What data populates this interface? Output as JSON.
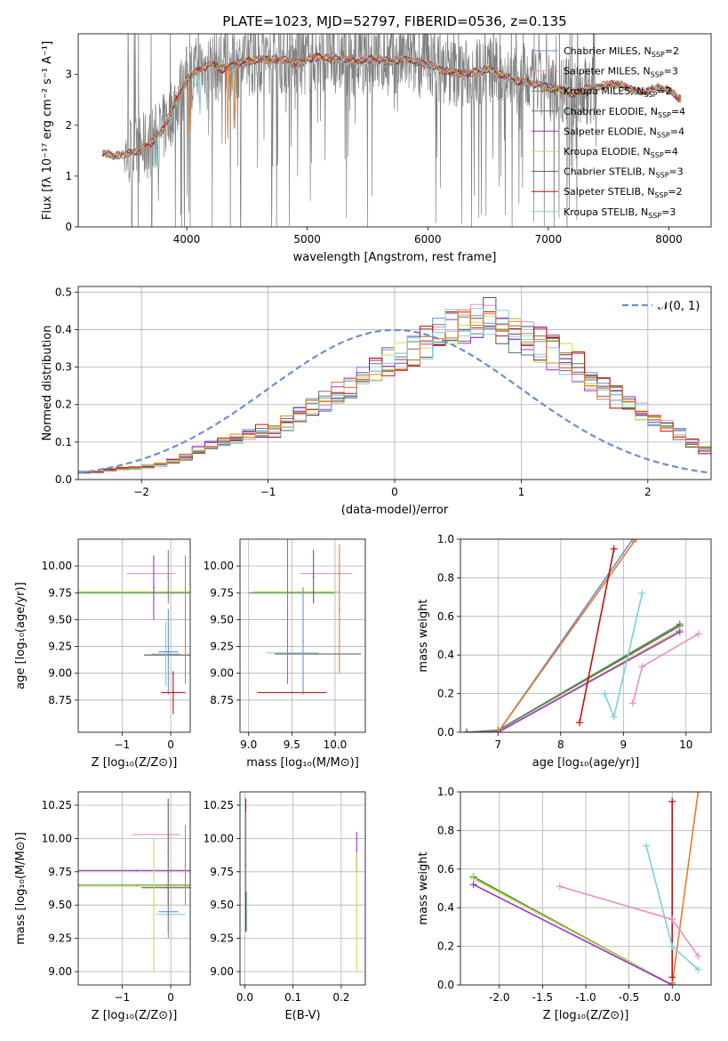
{
  "figure_title": "PLATE=1023, MJD=52797, FIBERID=0536, z=0.135",
  "colors": {
    "cm": "#6b8ed6",
    "sm": "#e88fc4",
    "km": "#4e8a4e",
    "ce": "#6e6e6e",
    "se": "#9b30d8",
    "ke": "#c6e04a",
    "cs": "#555555",
    "ss": "#c40f0f",
    "ks": "#7ecfda",
    "orange": "#e87b2a",
    "gray": "#808080"
  },
  "chart_data": [
    {
      "id": "spectrum",
      "type": "line",
      "title": "PLATE=1023, MJD=52797, FIBERID=0536, z=0.135",
      "xlabel": "wavelength [Angstrom, rest frame]",
      "ylabel": "Flux [fλ 10⁻¹⁷ erg cm⁻² s⁻¹ A⁻¹]",
      "xlim": [
        3100,
        8350
      ],
      "ylim": [
        0,
        3.8
      ],
      "xticks": [
        4000,
        5000,
        6000,
        7000,
        8000
      ],
      "yticks": [
        0,
        1,
        2,
        3
      ],
      "legend_position": "top-right",
      "legend": [
        "Chabrier MILES, N_SSP=2",
        "Salpeter MILES, N_SSP=3",
        "Kroupa MILES, N_SSP=2",
        "Chabrier ELODIE, N_SSP=4",
        "Salpeter ELODIE, N_SSP=4",
        "Kroupa ELODIE, N_SSP=4",
        "Chabrier STELIB, N_SSP=3",
        "Salpeter STELIB, N_SSP=2",
        "Kroupa STELIB, N_SSP=3"
      ],
      "model_curve": {
        "x": [
          3300,
          3400,
          3500,
          3600,
          3700,
          3800,
          3900,
          4000,
          4100,
          4200,
          4300,
          4400,
          4500,
          4600,
          4700,
          4800,
          4900,
          5000,
          5100,
          5200,
          5300,
          5400,
          5500,
          5600,
          5700,
          5800,
          5900,
          6000,
          6100,
          6200,
          6300,
          6400,
          6500,
          6600,
          6700,
          6800,
          6900,
          7000,
          7100,
          7200,
          7300,
          7400,
          7500,
          7600,
          7700,
          7800,
          7900,
          8000,
          8100
        ],
        "y": [
          1.45,
          1.4,
          1.45,
          1.5,
          1.65,
          1.9,
          2.4,
          2.9,
          3.1,
          3.2,
          3.1,
          3.2,
          3.25,
          3.3,
          3.28,
          3.3,
          3.2,
          3.3,
          3.35,
          3.3,
          3.3,
          3.25,
          3.3,
          3.3,
          3.25,
          3.3,
          3.25,
          3.2,
          3.1,
          3.05,
          3.0,
          3.05,
          3.1,
          3.0,
          2.9,
          2.85,
          2.8,
          2.75,
          2.7,
          2.6,
          2.7,
          2.75,
          2.8,
          2.8,
          2.7,
          2.65,
          2.75,
          2.7,
          2.5
        ]
      }
    },
    {
      "id": "residuals",
      "type": "histogram",
      "xlabel": "(data-model)/error",
      "ylabel": "Normed distribution",
      "xlim": [
        -2.5,
        2.5
      ],
      "ylim": [
        0,
        0.515
      ],
      "xticks": [
        -2,
        -1,
        0,
        1,
        2
      ],
      "yticks": [
        0.0,
        0.1,
        0.2,
        0.3,
        0.4,
        0.5
      ],
      "legend_position": "top-right",
      "legend": [
        "𝒩(0, 1)"
      ],
      "bin_width": 0.1,
      "bins_start": -2.5,
      "values": [
        0.02,
        0.02,
        0.025,
        0.03,
        0.03,
        0.035,
        0.04,
        0.05,
        0.06,
        0.08,
        0.09,
        0.1,
        0.11,
        0.12,
        0.13,
        0.13,
        0.15,
        0.17,
        0.19,
        0.21,
        0.23,
        0.25,
        0.27,
        0.29,
        0.31,
        0.33,
        0.35,
        0.37,
        0.38,
        0.4,
        0.42,
        0.43,
        0.43,
        0.41,
        0.39,
        0.37,
        0.36,
        0.34,
        0.32,
        0.3,
        0.27,
        0.24,
        0.22,
        0.2,
        0.18,
        0.16,
        0.14,
        0.12,
        0.1,
        0.08,
        0.07,
        0.06,
        0.05,
        0.04,
        0.035,
        0.03,
        0.025,
        0.02
      ]
    },
    {
      "id": "age_vs_Z",
      "type": "scatter",
      "xlabel": "Z [log₁₀(Z/Z⊙)]",
      "ylabel": "age  [log₁₀(age/yr)]",
      "xlim": [
        -1.9,
        0.4
      ],
      "ylim": [
        8.45,
        10.25
      ],
      "xticks": [
        -1,
        0
      ],
      "yticks": [
        8.75,
        9.0,
        9.25,
        9.5,
        9.75,
        10.0
      ],
      "crosses": [
        {
          "c": "km",
          "x": -0.7,
          "xerr": 1.2,
          "y": 9.75,
          "yerr": 0
        },
        {
          "c": "ke",
          "x": -0.7,
          "xerr": 1.2,
          "y": 9.76,
          "yerr": 0
        },
        {
          "c": "sm",
          "x": -0.4,
          "xerr": 0.5,
          "y": 9.93,
          "yerr": 0
        },
        {
          "c": "se",
          "x": -0.35,
          "xerr": 0,
          "y": 9.8,
          "yerr": 0.3
        },
        {
          "c": "cs",
          "x": -0.05,
          "xerr": 0.5,
          "y": 9.17,
          "yerr": 0
        },
        {
          "c": "ks",
          "x": -0.1,
          "xerr": 0.3,
          "y": 9.18,
          "yerr": 0.3
        },
        {
          "c": "cm",
          "x": -0.05,
          "xerr": 0.2,
          "y": 9.2,
          "yerr": 0.4
        },
        {
          "c": "orange",
          "x": 0.3,
          "xerr": 0,
          "y": 9.5,
          "yerr": 0.6
        },
        {
          "c": "ss",
          "x": 0.05,
          "xerr": 0.25,
          "y": 8.82,
          "yerr": 0.2
        },
        {
          "c": "gray",
          "x": -0.05,
          "xerr": 0,
          "y": 9.9,
          "yerr": 0.25
        }
      ]
    },
    {
      "id": "age_vs_mass",
      "type": "scatter",
      "xlabel": "mass [log₁₀(M/M⊙)]",
      "ylabel": "",
      "xlim": [
        8.9,
        10.35
      ],
      "ylim": [
        8.45,
        10.25
      ],
      "xticks": [
        9.0,
        9.5,
        10.0
      ],
      "yticks": [
        8.75,
        9.0,
        9.25,
        9.5,
        9.75,
        10.0
      ],
      "crosses": [
        {
          "c": "km",
          "x": 9.5,
          "xerr": 0.5,
          "y": 9.75,
          "yerr": 0
        },
        {
          "c": "ke",
          "x": 9.55,
          "xerr": 0.5,
          "y": 9.76,
          "yerr": 0
        },
        {
          "c": "sm",
          "x": 9.9,
          "xerr": 0.3,
          "y": 9.93,
          "yerr": 0
        },
        {
          "c": "cs",
          "x": 9.8,
          "xerr": 0.5,
          "y": 9.18,
          "yerr": 0
        },
        {
          "c": "ks",
          "x": 9.5,
          "xerr": 0.3,
          "y": 9.19,
          "yerr": 0
        },
        {
          "c": "ss",
          "x": 9.5,
          "xerr": 0.4,
          "y": 8.82,
          "yerr": 0
        },
        {
          "c": "se",
          "x": 9.75,
          "xerr": 0,
          "y": 9.9,
          "yerr": 0.25
        },
        {
          "c": "gray",
          "x": 9.45,
          "xerr": 0,
          "y": 9.6,
          "yerr": 0.7
        },
        {
          "c": "orange",
          "x": 10.05,
          "xerr": 0,
          "y": 9.6,
          "yerr": 0.6
        },
        {
          "c": "cm",
          "x": 9.63,
          "xerr": 0,
          "y": 9.3,
          "yerr": 0.5
        }
      ]
    },
    {
      "id": "massweight_vs_age",
      "type": "line",
      "xlabel": "age  [log₁₀(age/yr)]",
      "ylabel": "mass weight",
      "xlim": [
        6.4,
        10.4
      ],
      "ylim": [
        0,
        1.0
      ],
      "xticks": [
        7,
        8,
        9,
        10
      ],
      "yticks": [
        0.0,
        0.2,
        0.4,
        0.6,
        0.8,
        1.0
      ],
      "series": [
        {
          "c": "ce",
          "x": [
            6.5,
            7.0,
            9.9
          ],
          "y": [
            0,
            0.01,
            0.55
          ]
        },
        {
          "c": "km",
          "x": [
            6.5,
            7.0,
            9.9
          ],
          "y": [
            0,
            0.01,
            0.56
          ]
        },
        {
          "c": "ke",
          "x": [
            6.5,
            7.0,
            9.9
          ],
          "y": [
            0,
            0.0,
            0.53
          ]
        },
        {
          "c": "se",
          "x": [
            6.5,
            7.0,
            9.9
          ],
          "y": [
            0,
            0.0,
            0.52
          ]
        },
        {
          "c": "cm",
          "x": [
            7.0,
            9.15
          ],
          "y": [
            0.0,
            1.0
          ]
        },
        {
          "c": "orange",
          "x": [
            7.0,
            9.2
          ],
          "y": [
            0.0,
            1.0
          ]
        },
        {
          "c": "ss",
          "x": [
            8.3,
            8.85
          ],
          "y": [
            0.05,
            0.95
          ]
        },
        {
          "c": "ks",
          "x": [
            8.7,
            8.85,
            9.3
          ],
          "y": [
            0.2,
            0.08,
            0.72
          ]
        },
        {
          "c": "sm",
          "x": [
            9.15,
            9.3,
            10.2
          ],
          "y": [
            0.15,
            0.34,
            0.51
          ]
        }
      ]
    },
    {
      "id": "mass_vs_Z",
      "type": "scatter",
      "xlabel": "Z [log₁₀(Z/Z⊙)]",
      "ylabel": "mass [log₁₀(M/M⊙)]",
      "xlim": [
        -1.9,
        0.4
      ],
      "ylim": [
        8.9,
        10.35
      ],
      "xticks": [
        -1,
        0
      ],
      "yticks": [
        9.0,
        9.25,
        9.5,
        9.75,
        10.0,
        10.25
      ],
      "crosses": [
        {
          "c": "se",
          "x": -0.7,
          "xerr": 1.2,
          "y": 9.76,
          "yerr": 0
        },
        {
          "c": "km",
          "x": -0.7,
          "xerr": 1.2,
          "y": 9.65,
          "yerr": 0
        },
        {
          "c": "ke",
          "x": -0.75,
          "xerr": 1.2,
          "y": 9.64,
          "yerr": 0
        },
        {
          "c": "sm",
          "x": -0.3,
          "xerr": 0.5,
          "y": 10.03,
          "yerr": 0
        },
        {
          "c": "cs",
          "x": -0.1,
          "xerr": 0.5,
          "y": 9.63,
          "yerr": 0
        },
        {
          "c": "ks",
          "x": 0.0,
          "xerr": 0.3,
          "y": 9.43,
          "yerr": 0
        },
        {
          "c": "cm",
          "x": -0.05,
          "xerr": 0.2,
          "y": 9.45,
          "yerr": 0.2
        },
        {
          "c": "orange",
          "x": 0.3,
          "xerr": 0,
          "y": 9.8,
          "yerr": 0.3
        },
        {
          "c": "ss",
          "x": -0.05,
          "xerr": 0,
          "y": 9.9,
          "yerr": 0.4
        },
        {
          "c": "gray",
          "x": -0.05,
          "xerr": 0,
          "y": 9.8,
          "yerr": 0.5
        },
        {
          "c": "ke",
          "x": -0.35,
          "xerr": 0,
          "y": 9.5,
          "yerr": 0.5
        }
      ]
    },
    {
      "id": "mass_vs_ebv",
      "type": "scatter",
      "xlabel": "E(B-V)",
      "ylabel": "",
      "xlim": [
        -0.01,
        0.25
      ],
      "ylim": [
        8.9,
        10.35
      ],
      "xticks": [
        0.0,
        0.1,
        0.2
      ],
      "yticks": [
        9.0,
        9.25,
        9.5,
        9.75,
        10.0,
        10.25
      ],
      "crosses": [
        {
          "c": "ss",
          "x": 0.002,
          "xerr": 0,
          "y": 9.8,
          "yerr": 0.5
        },
        {
          "c": "ks",
          "x": 0.004,
          "xerr": 0,
          "y": 9.45,
          "yerr": 0.15
        },
        {
          "c": "gray",
          "x": 0.002,
          "xerr": 0,
          "y": 9.9,
          "yerr": 0.3
        },
        {
          "c": "se",
          "x": 0.232,
          "xerr": 0,
          "y": 9.9,
          "yerr": 0.15
        },
        {
          "c": "ke",
          "x": 0.232,
          "xerr": 0,
          "y": 9.45,
          "yerr": 0.45
        }
      ]
    },
    {
      "id": "massweight_vs_Z",
      "type": "line",
      "xlabel": "Z [log₁₀(Z/Z⊙)]",
      "ylabel": "mass weight",
      "xlim": [
        -2.45,
        0.45
      ],
      "ylim": [
        0,
        1.0
      ],
      "xticks": [
        -2.0,
        -1.5,
        -1.0,
        -0.5,
        0.0
      ],
      "yticks": [
        0.0,
        0.2,
        0.4,
        0.6,
        0.8,
        1.0
      ],
      "series": [
        {
          "c": "km",
          "x": [
            -2.3,
            0.0,
            0.0
          ],
          "y": [
            0.56,
            0.0,
            0.01
          ]
        },
        {
          "c": "ke",
          "x": [
            -2.3,
            0.0
          ],
          "y": [
            0.55,
            0.0
          ]
        },
        {
          "c": "se",
          "x": [
            -2.3,
            0.0
          ],
          "y": [
            0.52,
            0.0
          ]
        },
        {
          "c": "orange",
          "x": [
            0.0,
            0.3
          ],
          "y": [
            0.0,
            1.0
          ]
        },
        {
          "c": "ss",
          "x": [
            0.0,
            0.0
          ],
          "y": [
            0.04,
            0.95
          ]
        },
        {
          "c": "ks",
          "x": [
            -0.3,
            0.0,
            0.3
          ],
          "y": [
            0.72,
            0.2,
            0.08
          ]
        },
        {
          "c": "sm",
          "x": [
            -1.3,
            0.0,
            0.3
          ],
          "y": [
            0.51,
            0.34,
            0.15
          ]
        }
      ]
    }
  ]
}
